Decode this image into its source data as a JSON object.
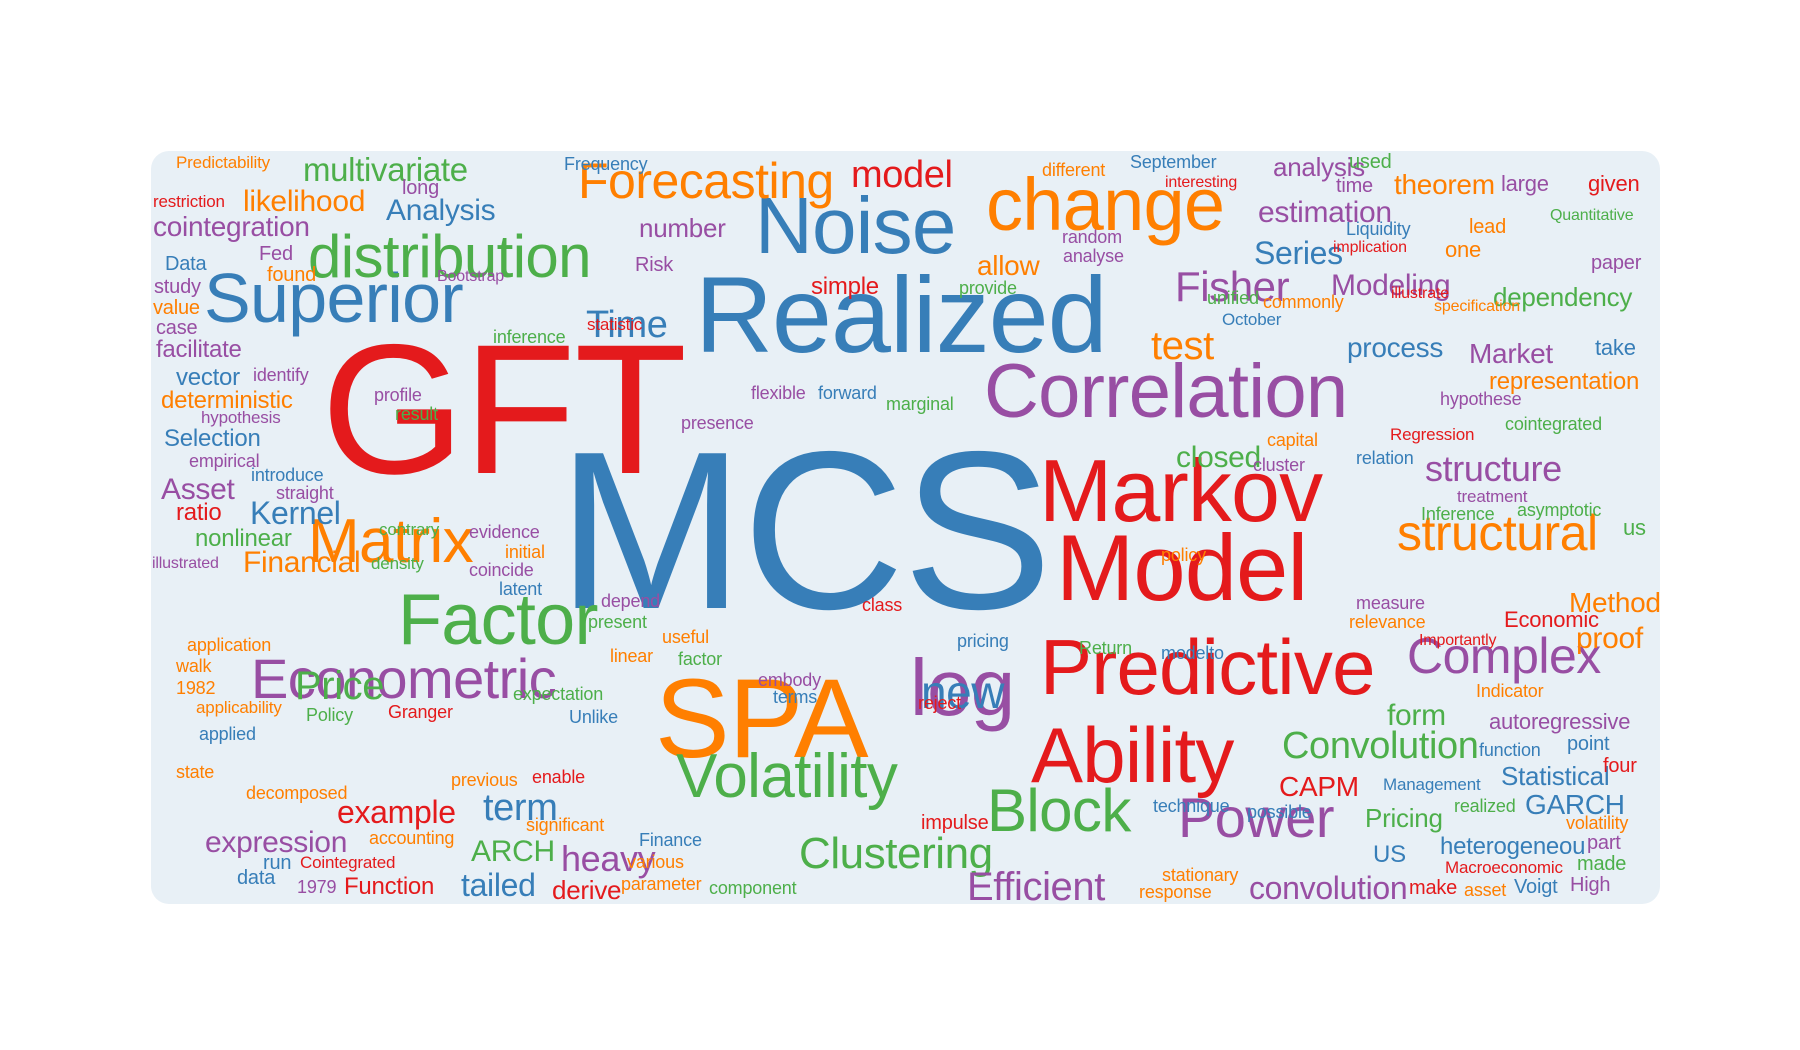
{
  "colors": {
    "red": "#e41a1c",
    "blue": "#377eb8",
    "green": "#4daf4a",
    "orange": "#ff7f00",
    "purple": "#984ea3",
    "background": "#e8f0f6"
  },
  "words": [
    {
      "text": "MCS",
      "color": "blue"
    },
    {
      "text": "GFT",
      "color": "red"
    },
    {
      "text": "Realized",
      "color": "blue"
    },
    {
      "text": "SPA",
      "color": "orange"
    },
    {
      "text": "Model",
      "color": "red"
    },
    {
      "text": "Markov",
      "color": "red"
    },
    {
      "text": "Predictive",
      "color": "red"
    },
    {
      "text": "Ability",
      "color": "red"
    },
    {
      "text": "Noise",
      "color": "blue"
    },
    {
      "text": "change",
      "color": "orange"
    },
    {
      "text": "Correlation",
      "color": "purple"
    },
    {
      "text": "Superior",
      "color": "blue"
    },
    {
      "text": "distribution",
      "color": "green"
    },
    {
      "text": "Factor",
      "color": "green"
    },
    {
      "text": "log",
      "color": "purple"
    },
    {
      "text": "Volatility",
      "color": "green"
    },
    {
      "text": "Forecasting",
      "color": "orange"
    },
    {
      "text": "Econometric",
      "color": "purple"
    },
    {
      "text": "Matrix",
      "color": "orange"
    },
    {
      "text": "Block",
      "color": "green"
    },
    {
      "text": "structural",
      "color": "orange"
    },
    {
      "text": "Complex",
      "color": "purple"
    },
    {
      "text": "Power",
      "color": "purple"
    },
    {
      "text": "Clustering",
      "color": "green"
    },
    {
      "text": "Efficient",
      "color": "purple"
    },
    {
      "text": "Convolution",
      "color": "green"
    },
    {
      "text": "model",
      "color": "red"
    },
    {
      "text": "multivariate",
      "color": "green"
    },
    {
      "text": "Fisher",
      "color": "purple"
    },
    {
      "text": "new",
      "color": "blue"
    },
    {
      "text": "Price",
      "color": "green"
    },
    {
      "text": "structure",
      "color": "purple"
    },
    {
      "text": "test",
      "color": "orange"
    },
    {
      "text": "Time",
      "color": "blue"
    },
    {
      "text": "heavy",
      "color": "purple"
    },
    {
      "text": "convolution",
      "color": "purple"
    },
    {
      "text": "term",
      "color": "blue"
    },
    {
      "text": "Analysis",
      "color": "blue"
    },
    {
      "text": "example",
      "color": "red"
    },
    {
      "text": "Modeling",
      "color": "purple"
    },
    {
      "text": "likelihood",
      "color": "orange"
    },
    {
      "text": "cointegration",
      "color": "purple"
    },
    {
      "text": "Series",
      "color": "blue"
    },
    {
      "text": "estimation",
      "color": "purple"
    },
    {
      "text": "Kernel",
      "color": "blue"
    },
    {
      "text": "tailed",
      "color": "blue"
    },
    {
      "text": "Financial",
      "color": "orange"
    },
    {
      "text": "theorem",
      "color": "orange"
    },
    {
      "text": "analysis",
      "color": "purple"
    },
    {
      "text": "allow",
      "color": "orange"
    },
    {
      "text": "Asset",
      "color": "purple"
    },
    {
      "text": "expression",
      "color": "purple"
    },
    {
      "text": "Statistical",
      "color": "blue"
    },
    {
      "text": "GARCH",
      "color": "blue"
    },
    {
      "text": "process",
      "color": "blue"
    },
    {
      "text": "closed",
      "color": "green"
    },
    {
      "text": "form",
      "color": "green"
    },
    {
      "text": "proof",
      "color": "orange"
    },
    {
      "text": "Method",
      "color": "orange"
    },
    {
      "text": "Market",
      "color": "purple"
    },
    {
      "text": "dependency",
      "color": "green"
    },
    {
      "text": "number",
      "color": "purple"
    },
    {
      "text": "representation",
      "color": "orange"
    },
    {
      "text": "autoregressive",
      "color": "purple"
    },
    {
      "text": "ARCH",
      "color": "green"
    },
    {
      "text": "derive",
      "color": "red"
    },
    {
      "text": "Function",
      "color": "red"
    },
    {
      "text": "Pricing",
      "color": "green"
    },
    {
      "text": "CAPM",
      "color": "red"
    },
    {
      "text": "Economic",
      "color": "red"
    },
    {
      "text": "US",
      "color": "blue"
    },
    {
      "text": "heterogeneou",
      "color": "blue"
    },
    {
      "text": "deterministic",
      "color": "orange"
    },
    {
      "text": "facilitate",
      "color": "purple"
    },
    {
      "text": "vector",
      "color": "blue"
    },
    {
      "text": "Selection",
      "color": "blue"
    },
    {
      "text": "nonlinear",
      "color": "green"
    },
    {
      "text": "ratio",
      "color": "red"
    },
    {
      "text": "simple",
      "color": "red"
    },
    {
      "text": "Risk",
      "color": "purple"
    },
    {
      "text": "Data",
      "color": "blue"
    },
    {
      "text": "study",
      "color": "purple"
    },
    {
      "text": "value",
      "color": "orange"
    },
    {
      "text": "case",
      "color": "purple"
    },
    {
      "text": "Fed",
      "color": "purple"
    },
    {
      "text": "found",
      "color": "orange"
    },
    {
      "text": "long",
      "color": "purple"
    },
    {
      "text": "used",
      "color": "green"
    },
    {
      "text": "time",
      "color": "purple"
    },
    {
      "text": "large",
      "color": "purple"
    },
    {
      "text": "given",
      "color": "red"
    },
    {
      "text": "lead",
      "color": "orange"
    },
    {
      "text": "one",
      "color": "orange"
    },
    {
      "text": "paper",
      "color": "purple"
    },
    {
      "text": "take",
      "color": "blue"
    },
    {
      "text": "Predictability",
      "color": "orange"
    },
    {
      "text": "Frequency",
      "color": "blue"
    },
    {
      "text": "different",
      "color": "orange"
    },
    {
      "text": "September",
      "color": "blue"
    },
    {
      "text": "interesting",
      "color": "red"
    },
    {
      "text": "restriction",
      "color": "red"
    },
    {
      "text": "Quantitative",
      "color": "green"
    },
    {
      "text": "Liquidity",
      "color": "blue"
    },
    {
      "text": "implication",
      "color": "red"
    },
    {
      "text": "random",
      "color": "purple"
    },
    {
      "text": "analyse",
      "color": "purple"
    },
    {
      "text": "provide",
      "color": "green"
    },
    {
      "text": "Bootstrap",
      "color": "purple"
    },
    {
      "text": "unified",
      "color": "green"
    },
    {
      "text": "commonly",
      "color": "orange"
    },
    {
      "text": "illustrate",
      "color": "red"
    },
    {
      "text": "specification",
      "color": "orange"
    },
    {
      "text": "October",
      "color": "blue"
    },
    {
      "text": "statistic",
      "color": "red"
    },
    {
      "text": "inference",
      "color": "green"
    },
    {
      "text": "identify",
      "color": "purple"
    },
    {
      "text": "profile",
      "color": "purple"
    },
    {
      "text": "result",
      "color": "green"
    },
    {
      "text": "hypothesis",
      "color": "purple"
    },
    {
      "text": "flexible",
      "color": "purple"
    },
    {
      "text": "forward",
      "color": "blue"
    },
    {
      "text": "marginal",
      "color": "green"
    },
    {
      "text": "hypothese",
      "color": "purple"
    },
    {
      "text": "cointegrated",
      "color": "green"
    },
    {
      "text": "presence",
      "color": "purple"
    },
    {
      "text": "empirical",
      "color": "purple"
    },
    {
      "text": "introduce",
      "color": "blue"
    },
    {
      "text": "straight",
      "color": "purple"
    },
    {
      "text": "capital",
      "color": "orange"
    },
    {
      "text": "cluster",
      "color": "purple"
    },
    {
      "text": "relation",
      "color": "blue"
    },
    {
      "text": "Regression",
      "color": "red"
    },
    {
      "text": "treatment",
      "color": "purple"
    },
    {
      "text": "Inference",
      "color": "green"
    },
    {
      "text": "asymptotic",
      "color": "green"
    },
    {
      "text": "us",
      "color": "green"
    },
    {
      "text": "contrary",
      "color": "green"
    },
    {
      "text": "evidence",
      "color": "purple"
    },
    {
      "text": "initial",
      "color": "orange"
    },
    {
      "text": "coincide",
      "color": "purple"
    },
    {
      "text": "density",
      "color": "green"
    },
    {
      "text": "latent",
      "color": "blue"
    },
    {
      "text": "illustrated",
      "color": "purple"
    },
    {
      "text": "policy",
      "color": "orange"
    },
    {
      "text": "depend",
      "color": "purple"
    },
    {
      "text": "class",
      "color": "red"
    },
    {
      "text": "present",
      "color": "green"
    },
    {
      "text": "useful",
      "color": "orange"
    },
    {
      "text": "measure",
      "color": "purple"
    },
    {
      "text": "relevance",
      "color": "orange"
    },
    {
      "text": "Importantly",
      "color": "red"
    },
    {
      "text": "application",
      "color": "orange"
    },
    {
      "text": "walk",
      "color": "orange"
    },
    {
      "text": "1982",
      "color": "orange"
    },
    {
      "text": "applicability",
      "color": "orange"
    },
    {
      "text": "applied",
      "color": "blue"
    },
    {
      "text": "state",
      "color": "orange"
    },
    {
      "text": "Policy",
      "color": "green"
    },
    {
      "text": "Granger",
      "color": "red"
    },
    {
      "text": "linear",
      "color": "orange"
    },
    {
      "text": "factor",
      "color": "green"
    },
    {
      "text": "expectation",
      "color": "green"
    },
    {
      "text": "embody",
      "color": "purple"
    },
    {
      "text": "terms",
      "color": "blue"
    },
    {
      "text": "Unlike",
      "color": "blue"
    },
    {
      "text": "pricing",
      "color": "blue"
    },
    {
      "text": "Return",
      "color": "green"
    },
    {
      "text": "modelto",
      "color": "blue"
    },
    {
      "text": "Indicator",
      "color": "orange"
    },
    {
      "text": "reject",
      "color": "red"
    },
    {
      "text": "function",
      "color": "blue"
    },
    {
      "text": "point",
      "color": "blue"
    },
    {
      "text": "four",
      "color": "red"
    },
    {
      "text": "decomposed",
      "color": "orange"
    },
    {
      "text": "previous",
      "color": "orange"
    },
    {
      "text": "enable",
      "color": "red"
    },
    {
      "text": "significant",
      "color": "orange"
    },
    {
      "text": "Finance",
      "color": "blue"
    },
    {
      "text": "accounting",
      "color": "orange"
    },
    {
      "text": "various",
      "color": "orange"
    },
    {
      "text": "parameter",
      "color": "orange"
    },
    {
      "text": "component",
      "color": "green"
    },
    {
      "text": "run",
      "color": "blue"
    },
    {
      "text": "Cointegrated",
      "color": "red"
    },
    {
      "text": "data",
      "color": "blue"
    },
    {
      "text": "1979",
      "color": "purple"
    },
    {
      "text": "impulse",
      "color": "red"
    },
    {
      "text": "technique",
      "color": "blue"
    },
    {
      "text": "possible",
      "color": "blue"
    },
    {
      "text": "Management",
      "color": "blue"
    },
    {
      "text": "realized",
      "color": "green"
    },
    {
      "text": "volatility",
      "color": "orange"
    },
    {
      "text": "part",
      "color": "purple"
    },
    {
      "text": "made",
      "color": "green"
    },
    {
      "text": "Macroeconomic",
      "color": "red"
    },
    {
      "text": "stationary",
      "color": "orange"
    },
    {
      "text": "response",
      "color": "orange"
    },
    {
      "text": "make",
      "color": "red"
    },
    {
      "text": "asset",
      "color": "orange"
    },
    {
      "text": "Voigt",
      "color": "blue"
    },
    {
      "text": "High",
      "color": "purple"
    }
  ]
}
